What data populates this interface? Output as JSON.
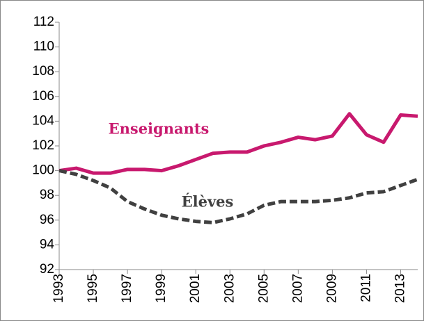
{
  "chart_data": {
    "type": "line",
    "x": [
      1993,
      1994,
      1995,
      1996,
      1997,
      1998,
      1999,
      2000,
      2001,
      2002,
      2003,
      2004,
      2005,
      2006,
      2007,
      2008,
      2009,
      2010,
      2011,
      2012,
      2013,
      2014
    ],
    "series": [
      {
        "name": "Enseignants",
        "color": "#c8196e",
        "dash": false,
        "values": [
          100.0,
          100.2,
          99.8,
          99.8,
          100.1,
          100.1,
          100.0,
          100.4,
          100.9,
          101.4,
          101.5,
          101.5,
          102.0,
          102.3,
          102.7,
          102.5,
          102.8,
          104.6,
          102.9,
          102.3,
          104.5,
          104.4
        ]
      },
      {
        "name": "Élèves",
        "color": "#404040",
        "dash": true,
        "values": [
          100.0,
          99.7,
          99.2,
          98.6,
          97.5,
          96.9,
          96.4,
          96.1,
          95.9,
          95.8,
          96.1,
          96.5,
          97.2,
          97.5,
          97.5,
          97.5,
          97.6,
          97.8,
          98.2,
          98.3,
          98.8,
          99.3
        ]
      }
    ],
    "xlim": [
      1993,
      2014
    ],
    "xticks": [
      1993,
      1995,
      1997,
      1999,
      2001,
      2003,
      2005,
      2007,
      2009,
      2011,
      2013
    ],
    "ylim": [
      92,
      112
    ],
    "yticks": [
      92,
      94,
      96,
      98,
      100,
      102,
      104,
      106,
      108,
      110,
      112
    ],
    "grid": false
  }
}
